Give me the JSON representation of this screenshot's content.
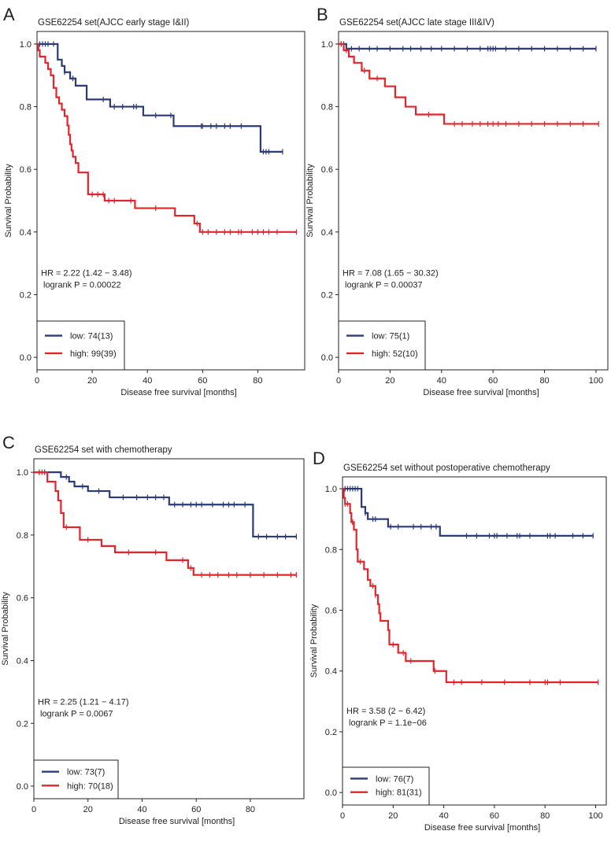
{
  "colors": {
    "low": "#2b3a78",
    "high": "#e3242b"
  },
  "chart_data": [
    {
      "type": "line",
      "panel_label": "A",
      "title": "GSE62254 set(AJCC early stage I&II)",
      "xlabel": "Disease free survival [months]",
      "ylabel": "Survival Probability",
      "xlim": [
        0,
        97
      ],
      "ylim": [
        -0.04,
        1.04
      ],
      "xticks": [
        0,
        20,
        40,
        60,
        80
      ],
      "yticks": [
        0.0,
        0.2,
        0.4,
        0.6,
        0.8,
        1.0
      ],
      "annotation": [
        "HR = 2.22 (1.42 − 3.48)",
        "logrank P = 0.00022"
      ],
      "series": [
        {
          "name": "low: 74(13)",
          "key": "low",
          "end": 89,
          "steps": [
            [
              0,
              1.0
            ],
            [
              7.5,
              0.95
            ],
            [
              9,
              0.93
            ],
            [
              10,
              0.91
            ],
            [
              12,
              0.89
            ],
            [
              14,
              0.867
            ],
            [
              18,
              0.823
            ],
            [
              26.5,
              0.8
            ],
            [
              38.5,
              0.772
            ],
            [
              49.5,
              0.738
            ],
            [
              81,
              0.656
            ]
          ],
          "censored": [
            1,
            2,
            3,
            4,
            6,
            10,
            13,
            24,
            28,
            31,
            35,
            36,
            43,
            48.5,
            59.5,
            60,
            63,
            65,
            68,
            70,
            74,
            82,
            83,
            84,
            89
          ]
        },
        {
          "name": "high: 99(39)",
          "key": "high",
          "end": 94,
          "steps": [
            [
              0,
              1.0
            ],
            [
              0.5,
              0.98
            ],
            [
              1,
              0.96
            ],
            [
              3,
              0.94
            ],
            [
              4,
              0.92
            ],
            [
              5,
              0.9
            ],
            [
              6,
              0.86
            ],
            [
              7,
              0.83
            ],
            [
              8,
              0.81
            ],
            [
              9,
              0.79
            ],
            [
              10,
              0.77
            ],
            [
              11,
              0.74
            ],
            [
              11.5,
              0.71
            ],
            [
              12,
              0.68
            ],
            [
              12.5,
              0.66
            ],
            [
              13,
              0.64
            ],
            [
              14,
              0.62
            ],
            [
              15,
              0.59
            ],
            [
              18.5,
              0.52
            ],
            [
              24.5,
              0.5
            ],
            [
              35.5,
              0.476
            ],
            [
              50,
              0.452
            ],
            [
              57,
              0.427
            ],
            [
              59,
              0.4
            ]
          ],
          "censored": [
            20,
            22,
            24,
            26,
            28,
            34,
            43,
            58,
            60,
            62,
            65,
            68,
            70,
            73,
            74,
            78,
            80,
            82,
            84,
            87,
            94
          ]
        }
      ]
    },
    {
      "type": "line",
      "panel_label": "B",
      "title": "GSE62254 set(AJCC late stage III&IV)",
      "xlabel": "Disease free survival [months]",
      "ylabel": "Survival Probability",
      "xlim": [
        0,
        104.6
      ],
      "ylim": [
        -0.04,
        1.04
      ],
      "xticks": [
        0,
        20,
        40,
        60,
        80,
        100
      ],
      "yticks": [
        0.0,
        0.2,
        0.4,
        0.6,
        0.8,
        1.0
      ],
      "annotation": [
        "HR = 7.08 (1.65 − 30.32)",
        "logrank P = 0.00037"
      ],
      "series": [
        {
          "name": "low: 75(1)",
          "key": "low",
          "end": 100,
          "steps": [
            [
              0,
              1.0
            ],
            [
              3,
              0.985
            ]
          ],
          "censored": [
            1,
            2,
            5,
            8,
            12,
            15,
            20,
            25,
            28,
            32,
            36,
            40,
            45,
            50,
            55,
            58,
            59,
            60,
            61,
            65,
            70,
            75,
            80,
            85,
            90,
            95,
            100
          ]
        },
        {
          "name": "high: 52(10)",
          "key": "high",
          "end": 101,
          "steps": [
            [
              0,
              1.0
            ],
            [
              2,
              0.98
            ],
            [
              4,
              0.96
            ],
            [
              6,
              0.94
            ],
            [
              9,
              0.915
            ],
            [
              12,
              0.89
            ],
            [
              18,
              0.865
            ],
            [
              22,
              0.83
            ],
            [
              26,
              0.8
            ],
            [
              30,
              0.775
            ],
            [
              41,
              0.745
            ]
          ],
          "censored": [
            1,
            3,
            10,
            15,
            35,
            45,
            48,
            52,
            55,
            58,
            60,
            62,
            65,
            70,
            75,
            80,
            85,
            90,
            95,
            101
          ]
        }
      ]
    },
    {
      "type": "line",
      "panel_label": "C",
      "title": "GSE62254 set with chemotherapy",
      "xlabel": "Disease free survival [months]",
      "ylabel": "Survival Probability",
      "xlim": [
        0,
        99.8
      ],
      "ylim": [
        -0.04,
        1.043
      ],
      "xticks": [
        0,
        20,
        40,
        60,
        80
      ],
      "yticks": [
        0.0,
        0.2,
        0.4,
        0.6,
        0.8,
        1.0
      ],
      "annotation": [
        "HR = 2.25 (1.21 − 4.17)",
        "logrank P = 0.0067"
      ],
      "series": [
        {
          "name": "low: 73(7)",
          "key": "low",
          "end": 97,
          "steps": [
            [
              0,
              1.0
            ],
            [
              10,
              0.985
            ],
            [
              13,
              0.97
            ],
            [
              15,
              0.955
            ],
            [
              20,
              0.94
            ],
            [
              28,
              0.92
            ],
            [
              50,
              0.897
            ],
            [
              81,
              0.795
            ]
          ],
          "censored": [
            2,
            4,
            12,
            18,
            24,
            33,
            38,
            42,
            45,
            48,
            52,
            55,
            58,
            60,
            62,
            66,
            70,
            72,
            74,
            78,
            83,
            86,
            90,
            93,
            97
          ]
        },
        {
          "name": "high: 70(18)",
          "key": "high",
          "end": 97,
          "steps": [
            [
              0,
              1.0
            ],
            [
              5,
              0.97
            ],
            [
              8,
              0.94
            ],
            [
              9,
              0.91
            ],
            [
              10,
              0.87
            ],
            [
              11,
              0.825
            ],
            [
              17,
              0.785
            ],
            [
              25,
              0.765
            ],
            [
              30,
              0.745
            ],
            [
              49,
              0.72
            ],
            [
              57,
              0.695
            ],
            [
              59,
              0.673
            ]
          ],
          "censored": [
            2,
            3,
            12,
            20,
            35,
            45,
            55,
            58,
            62,
            65,
            68,
            72,
            75,
            80,
            85,
            90,
            95,
            97
          ]
        }
      ]
    },
    {
      "type": "line",
      "panel_label": "D",
      "title": "GSE62254 set without postoperative chemotherapy",
      "xlabel": "Disease free survival [months]",
      "ylabel": "Survival Probability",
      "xlim": [
        0,
        104.2
      ],
      "ylim": [
        -0.041,
        1.039
      ],
      "xticks": [
        0,
        20,
        40,
        60,
        80,
        100
      ],
      "yticks": [
        0.0,
        0.2,
        0.4,
        0.6,
        0.8,
        1.0
      ],
      "annotation": [
        "HR = 3.58 (2 − 6.42)",
        "logrank P = 1.1e−06"
      ],
      "series": [
        {
          "name": "low: 76(7)",
          "key": "low",
          "end": 99,
          "steps": [
            [
              0,
              1.0
            ],
            [
              7.5,
              0.94
            ],
            [
              9,
              0.92
            ],
            [
              10,
              0.9
            ],
            [
              18,
              0.875
            ],
            [
              38.5,
              0.845
            ]
          ],
          "censored": [
            1,
            2,
            3,
            4,
            5,
            6,
            9,
            12,
            13,
            19,
            22,
            28,
            31,
            35,
            37,
            49,
            53,
            58,
            60,
            61,
            65,
            69,
            70,
            74,
            81,
            82,
            84,
            91,
            95,
            99
          ]
        },
        {
          "name": "high: 81(31)",
          "key": "high",
          "end": 101,
          "steps": [
            [
              0,
              1.0
            ],
            [
              0.5,
              0.97
            ],
            [
              1,
              0.95
            ],
            [
              3,
              0.92
            ],
            [
              3.5,
              0.89
            ],
            [
              4.5,
              0.865
            ],
            [
              5.5,
              0.8
            ],
            [
              6,
              0.76
            ],
            [
              8.5,
              0.735
            ],
            [
              10,
              0.7
            ],
            [
              11,
              0.68
            ],
            [
              13,
              0.65
            ],
            [
              14,
              0.62
            ],
            [
              14.5,
              0.59
            ],
            [
              15,
              0.565
            ],
            [
              18,
              0.535
            ],
            [
              18.5,
              0.487
            ],
            [
              22,
              0.46
            ],
            [
              25,
              0.433
            ],
            [
              36,
              0.4
            ],
            [
              41,
              0.363
            ]
          ],
          "censored": [
            1,
            2,
            4,
            7,
            12,
            13,
            20,
            24,
            27,
            36.5,
            44,
            47,
            55,
            64,
            74,
            80,
            81,
            86,
            101
          ]
        }
      ]
    }
  ]
}
